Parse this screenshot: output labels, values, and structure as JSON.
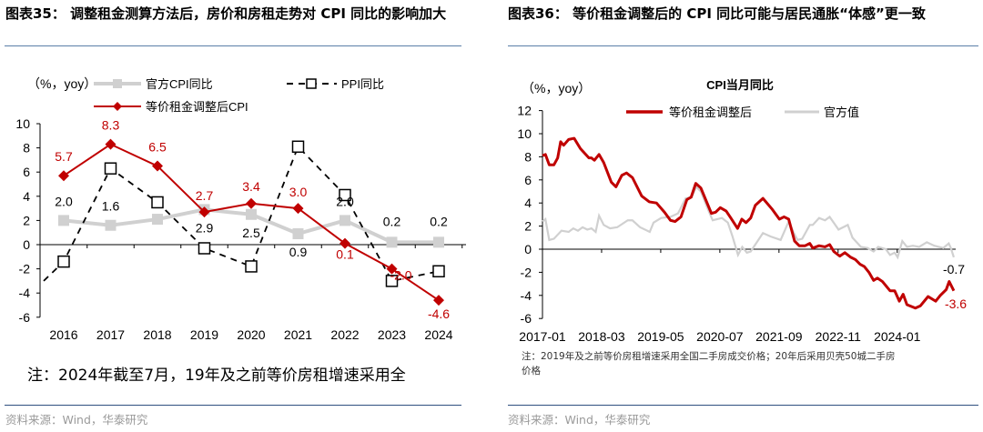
{
  "left": {
    "title_line1": "图表35：  调整租金测算方法后，房价和房租走势对 CPI 同比的影响加",
    "title_line2": "大",
    "note": "注：2024年截至7月，19年及之前等价房租增速采用全",
    "source": "资料来源：Wind，华泰研究"
  },
  "right": {
    "title": "图表36：  等价租金调整后的 CPI 同比可能与居民通胀“体感”更一致",
    "note_line1": "注：2019年及之前等价房租增速采用全国二手房成交价格；20年后采用贝壳50城二手房",
    "note_line2": "价格",
    "source": "资料来源：Wind，华泰研究"
  },
  "chart_data": [
    {
      "type": "line",
      "title": "",
      "ylabel": "（%，yoy）",
      "categories": [
        "2016",
        "2017",
        "2018",
        "2019",
        "2020",
        "2021",
        "2022",
        "2023",
        "2024"
      ],
      "ylim": [
        -6,
        10
      ],
      "yticks": [
        "10",
        "8",
        "6",
        "4",
        "2",
        "0",
        "-2",
        "-4",
        "-6"
      ],
      "legend_position": "top",
      "series": [
        {
          "name": "官方CPI同比",
          "color": "#d0d0d0",
          "values": [
            2.0,
            1.6,
            2.1,
            2.9,
            2.5,
            0.9,
            2.0,
            0.2,
            0.2
          ],
          "labels": [
            "2.0",
            "1.6",
            "",
            "2.9",
            "2.5",
            "0.9",
            "2.0",
            "0.2",
            "0.2"
          ]
        },
        {
          "name": "PPI同比",
          "color": "#000000",
          "values": [
            -1.4,
            6.3,
            3.5,
            -0.3,
            -1.8,
            8.1,
            4.1,
            -3.0,
            -2.2
          ],
          "labels": []
        },
        {
          "name": "等价租金调整后CPI",
          "color": "#c00000",
          "values": [
            5.7,
            8.3,
            6.5,
            2.7,
            3.4,
            3.0,
            0.1,
            -2.0,
            -4.6
          ],
          "labels": [
            "5.7",
            "8.3",
            "6.5",
            "2.7",
            "3.4",
            "3.0",
            "0.1",
            "-2.0",
            "-4.6"
          ]
        }
      ]
    },
    {
      "type": "line",
      "title": "CPI当月同比",
      "ylabel": "（%，yoy）",
      "x_unit": "months since 2017-01",
      "xticks": [
        "2017-01",
        "2018-03",
        "2019-05",
        "2020-07",
        "2021-09",
        "2022-11",
        "2024-01"
      ],
      "ylim": [
        -6,
        12
      ],
      "yticks": [
        "12",
        "10",
        "8",
        "6",
        "4",
        "2",
        "0",
        "-2",
        "-4",
        "-6"
      ],
      "legend_position": "top",
      "end_labels": {
        "adjusted": "-3.6",
        "official": "-0.7"
      },
      "series": [
        {
          "name": "等价租金调整后",
          "color": "#c00000",
          "points": [
            [
              0,
              8.1
            ],
            [
              0.7,
              8.2
            ],
            [
              1.6,
              7.3
            ],
            [
              2.7,
              7.3
            ],
            [
              3.6,
              7.9
            ],
            [
              4.3,
              9.3
            ],
            [
              5,
              9.0
            ],
            [
              6.2,
              9.5
            ],
            [
              7.5,
              9.6
            ],
            [
              9,
              8.7
            ],
            [
              11,
              7.9
            ],
            [
              11.6,
              7.9
            ],
            [
              12.3,
              7.7
            ],
            [
              13.4,
              8.2
            ],
            [
              14.5,
              7.5
            ],
            [
              16.3,
              5.8
            ],
            [
              17.4,
              5.4
            ],
            [
              18.8,
              6.4
            ],
            [
              19.9,
              6.6
            ],
            [
              21.3,
              6.2
            ],
            [
              23.5,
              4.6
            ],
            [
              25.3,
              4.1
            ],
            [
              27,
              4.0
            ],
            [
              28.9,
              3.2
            ],
            [
              30.3,
              2.5
            ],
            [
              31.4,
              2.4
            ],
            [
              32.8,
              2.8
            ],
            [
              34.2,
              4.3
            ],
            [
              35.2,
              4.5
            ],
            [
              36.3,
              5.7
            ],
            [
              37.5,
              5.3
            ],
            [
              40,
              3.1
            ],
            [
              41,
              3.2
            ],
            [
              42.1,
              3.6
            ],
            [
              43.5,
              3.3
            ],
            [
              44.6,
              2.7
            ],
            [
              46.2,
              1.8
            ],
            [
              47.2,
              2.6
            ],
            [
              48.2,
              2.3
            ],
            [
              49.3,
              2.7
            ],
            [
              50.4,
              3.8
            ],
            [
              52.2,
              4.4
            ],
            [
              54.3,
              3.5
            ],
            [
              56.1,
              2.6
            ],
            [
              57.2,
              2.8
            ],
            [
              58.3,
              2.6
            ],
            [
              59.7,
              0.7
            ],
            [
              60.8,
              0.3
            ],
            [
              62.2,
              0.3
            ],
            [
              63.3,
              0.5
            ],
            [
              64,
              0.1
            ],
            [
              65.5,
              0.3
            ],
            [
              66.9,
              0.2
            ],
            [
              68,
              0.4
            ],
            [
              69,
              -0.2
            ],
            [
              70.4,
              -0.6
            ],
            [
              71.6,
              -0.3
            ],
            [
              73,
              -0.7
            ],
            [
              74.1,
              -0.9
            ],
            [
              75.2,
              -1.3
            ],
            [
              76.2,
              -1.5
            ],
            [
              77.3,
              -2.0
            ],
            [
              78.4,
              -2.7
            ],
            [
              79.3,
              -2.5
            ],
            [
              80.5,
              -2.8
            ],
            [
              82.3,
              -3.6
            ],
            [
              83.4,
              -3.6
            ],
            [
              84.5,
              -4.5
            ],
            [
              85.4,
              -3.9
            ],
            [
              86.3,
              -4.8
            ],
            [
              88.3,
              -5.1
            ],
            [
              89.5,
              -4.9
            ],
            [
              91.3,
              -4.1
            ],
            [
              93.1,
              -4.5
            ],
            [
              94.2,
              -4.0
            ],
            [
              95.6,
              -3.5
            ],
            [
              96.3,
              -2.8
            ],
            [
              97.4,
              -3.6
            ]
          ]
        },
        {
          "name": "官方值",
          "color": "#d0d0d0",
          "points": [
            [
              0,
              2.4
            ],
            [
              0.7,
              2.6
            ],
            [
              1.6,
              0.8
            ],
            [
              2.7,
              0.9
            ],
            [
              4.5,
              1.6
            ],
            [
              6.2,
              1.5
            ],
            [
              7.3,
              1.8
            ],
            [
              8.4,
              1.6
            ],
            [
              9.5,
              1.9
            ],
            [
              10.6,
              1.7
            ],
            [
              11.6,
              1.8
            ],
            [
              12.6,
              1.5
            ],
            [
              13.4,
              2.9
            ],
            [
              14.5,
              2.1
            ],
            [
              16,
              1.8
            ],
            [
              17.7,
              1.9
            ],
            [
              20.2,
              2.5
            ],
            [
              21.3,
              2.5
            ],
            [
              23.1,
              1.9
            ],
            [
              25.4,
              1.5
            ],
            [
              26.3,
              2.3
            ],
            [
              28.1,
              2.7
            ],
            [
              30.3,
              2.8
            ],
            [
              32.1,
              3.1
            ],
            [
              33.9,
              4.4
            ],
            [
              35.3,
              4.5
            ],
            [
              36.4,
              5.4
            ],
            [
              37.5,
              5.0
            ],
            [
              38.9,
              3.7
            ],
            [
              40.3,
              2.5
            ],
            [
              42.5,
              2.7
            ],
            [
              43.9,
              2.3
            ],
            [
              45,
              1.1
            ],
            [
              46.3,
              -0.5
            ],
            [
              47.3,
              0.2
            ],
            [
              48.4,
              -0.3
            ],
            [
              49.3,
              -0.2
            ],
            [
              50.4,
              0.4
            ],
            [
              52.2,
              1.4
            ],
            [
              54,
              1.1
            ],
            [
              56.4,
              0.8
            ],
            [
              58.3,
              2.4
            ],
            [
              59.4,
              1.5
            ],
            [
              60.4,
              0.8
            ],
            [
              61.5,
              0.9
            ],
            [
              63.3,
              2.1
            ],
            [
              64,
              2.1
            ],
            [
              65.5,
              2.7
            ],
            [
              66.9,
              2.5
            ],
            [
              68,
              2.8
            ],
            [
              70.1,
              1.7
            ],
            [
              72.3,
              2.1
            ],
            [
              73.4,
              1.0
            ],
            [
              75.4,
              0.2
            ],
            [
              77,
              0.1
            ],
            [
              78.4,
              -0.2
            ],
            [
              79.5,
              0.2
            ],
            [
              81.3,
              0
            ],
            [
              82.3,
              -0.5
            ],
            [
              83.4,
              -0.3
            ],
            [
              84.1,
              -0.7
            ],
            [
              85.2,
              0.7
            ],
            [
              86.3,
              0.2
            ],
            [
              87.7,
              0.3
            ],
            [
              89.2,
              0.2
            ],
            [
              91,
              0.6
            ],
            [
              92.8,
              0.3
            ],
            [
              94.9,
              0.1
            ],
            [
              96.2,
              0.5
            ],
            [
              96.7,
              0.1
            ],
            [
              97.4,
              -0.7
            ]
          ]
        }
      ]
    }
  ]
}
